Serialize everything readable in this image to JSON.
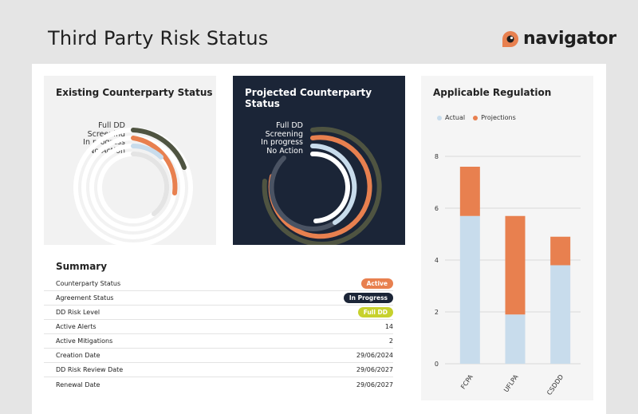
{
  "header": {
    "title": "Third Party Risk Status",
    "brand_name": "navigator",
    "brand_color": "#e8804f"
  },
  "existing": {
    "title": "Existing Counterparty Status",
    "labels": [
      "Full DD",
      "Screening",
      "In progress",
      "No Action"
    ]
  },
  "projected": {
    "title": "Projected Counterparty Status",
    "labels": [
      "Full DD",
      "Screening",
      "In progress",
      "No Action"
    ]
  },
  "colors": {
    "full_dd": "#4f5441",
    "screening": "#e8804f",
    "in_progress": "#c8dcec",
    "no_action": "#e4e4e4",
    "no_action_dark": "#ffffff",
    "actual": "#c8dcec",
    "projections": "#e8804f",
    "dark_bg": "#1b2537",
    "badge_active": "#e8804f",
    "badge_progress": "#1b2537",
    "badge_full_dd": "#c7d12d"
  },
  "regulation": {
    "title": "Applicable Regulation",
    "legend": [
      "Actual",
      "Projections"
    ]
  },
  "chart_data": {
    "type": "bar",
    "stacked": true,
    "categories": [
      "FCPA",
      "UFLPA",
      "CSDDD"
    ],
    "series": [
      {
        "name": "Actual",
        "values": [
          5.7,
          1.9,
          3.8
        ]
      },
      {
        "name": "Projections",
        "values": [
          1.9,
          3.8,
          1.1
        ]
      }
    ],
    "ylim": [
      0,
      8
    ],
    "yticks": [
      "0",
      "2",
      "4",
      "6",
      "8"
    ],
    "grid": true,
    "legend_position": "top-left"
  },
  "summary": {
    "title": "Summary",
    "rows": [
      {
        "label": "Counterparty Status",
        "value": "Active"
      },
      {
        "label": "Agreement Status",
        "value": "In Progress"
      },
      {
        "label": "DD Risk Level",
        "value": "Full DD"
      },
      {
        "label": "Active Alerts",
        "value": "14"
      },
      {
        "label": "Active Mitigations",
        "value": "2"
      },
      {
        "label": "Creation Date",
        "value": "29/06/2024"
      },
      {
        "label": "DD Risk Review Date",
        "value": "29/06/2027"
      },
      {
        "label": "Renewal Date",
        "value": "29/06/2027"
      }
    ]
  }
}
